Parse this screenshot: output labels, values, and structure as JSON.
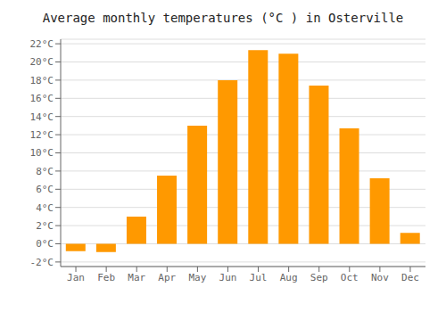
{
  "chart_data": {
    "type": "bar",
    "title": "Average monthly temperatures (°C ) in Osterville",
    "categories": [
      "Jan",
      "Feb",
      "Mar",
      "Apr",
      "May",
      "Jun",
      "Jul",
      "Aug",
      "Sep",
      "Oct",
      "Nov",
      "Dec"
    ],
    "values": [
      -0.8,
      -0.9,
      3.0,
      7.5,
      13.0,
      18.0,
      21.3,
      20.9,
      17.4,
      12.7,
      7.2,
      1.2
    ],
    "color": "#FF9900",
    "ylim": [
      -2.5,
      22.5
    ],
    "yticks": [
      {
        "value": -2,
        "label": "-2°C"
      },
      {
        "value": 0,
        "label": "0°C"
      },
      {
        "value": 2,
        "label": "2°C"
      },
      {
        "value": 4,
        "label": "4°C"
      },
      {
        "value": 6,
        "label": "6°C"
      },
      {
        "value": 8,
        "label": "8°C"
      },
      {
        "value": 10,
        "label": "10°C"
      },
      {
        "value": 12,
        "label": "12°C"
      },
      {
        "value": 14,
        "label": "14°C"
      },
      {
        "value": 16,
        "label": "16°C"
      },
      {
        "value": 18,
        "label": "18°C"
      },
      {
        "value": 20,
        "label": "20°C"
      },
      {
        "value": 22,
        "label": "22°C"
      }
    ],
    "grid": true
  }
}
